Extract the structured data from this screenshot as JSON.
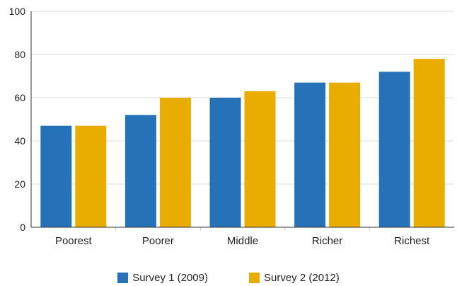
{
  "chart_data": {
    "type": "bar",
    "categories": [
      "Poorest",
      "Poorer",
      "Middle",
      "Richer",
      "Richest"
    ],
    "series": [
      {
        "name": "Survey 1 (2009)",
        "values": [
          47,
          52,
          60,
          67,
          72
        ],
        "color": "#2672b8"
      },
      {
        "name": "Survey 2 (2012)",
        "values": [
          47,
          60,
          63,
          67,
          78
        ],
        "color": "#e9ac00"
      }
    ],
    "ylim": [
      0,
      100
    ],
    "yticks": [
      0,
      20,
      40,
      60,
      80,
      100
    ],
    "grid": true,
    "legend_position": "bottom"
  }
}
